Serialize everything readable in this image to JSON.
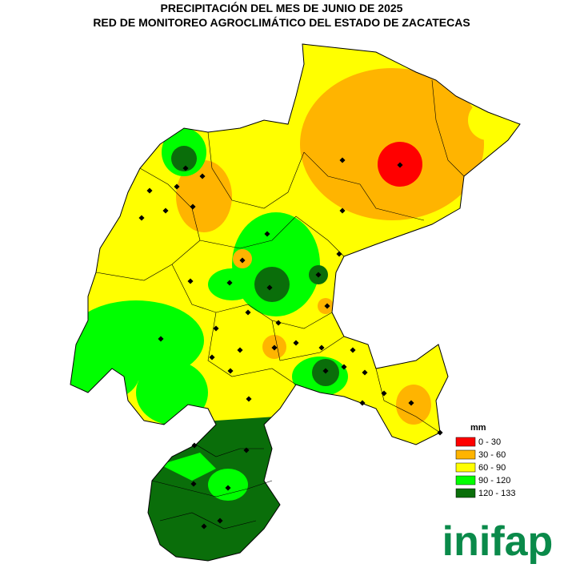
{
  "header": {
    "title": "PRECIPITACIÓN DEL MES DE JUNIO DE 2025",
    "subtitle": "RED DE MONITOREO AGROCLIMÁTICO DEL ESTADO DE ZACATECAS"
  },
  "legend": {
    "title": "mm",
    "items": [
      {
        "label": "0 - 30",
        "color": "#ff0000"
      },
      {
        "label": "30 - 60",
        "color": "#ffb400"
      },
      {
        "label": "60 - 90",
        "color": "#ffff00"
      },
      {
        "label": "90 - 120",
        "color": "#00ff00"
      },
      {
        "label": "120 - 133",
        "color": "#0a6e0a"
      }
    ]
  },
  "logo": "inifap"
}
